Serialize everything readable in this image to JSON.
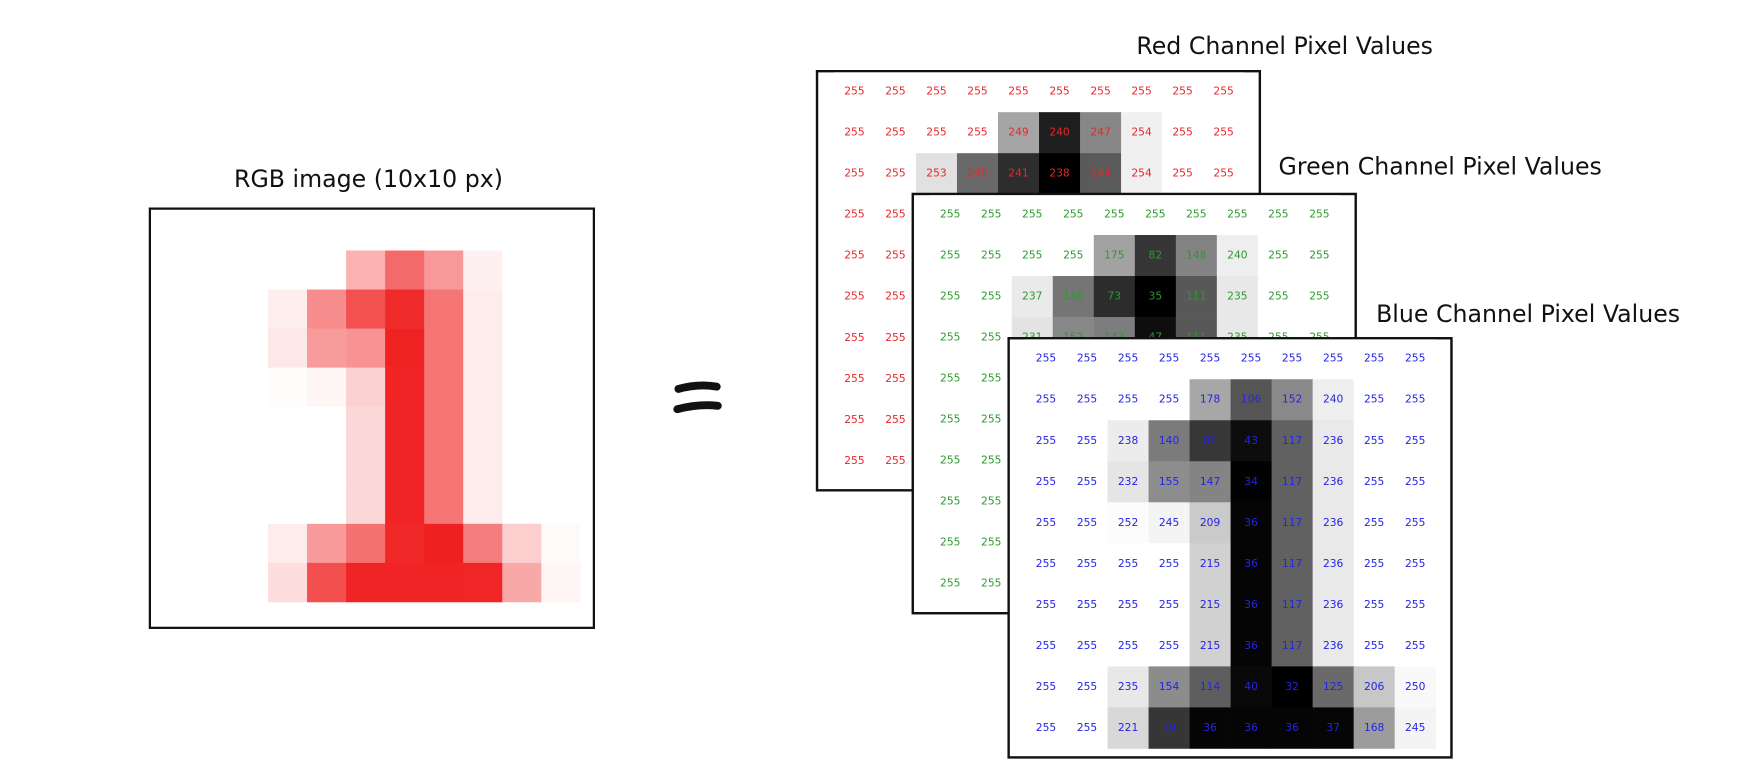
{
  "image": {
    "title": "RGB image (10x10 px)"
  },
  "channels": [
    {
      "title": "Red Channel Pixel Values",
      "color": "#e8262a",
      "values": [
        [
          255,
          255,
          255,
          255,
          255,
          255,
          255,
          255,
          255,
          255
        ],
        [
          255,
          255,
          255,
          255,
          249,
          240,
          247,
          254,
          255,
          255
        ],
        [
          255,
          255,
          253,
          245,
          241,
          238,
          244,
          254,
          255,
          255
        ],
        [
          255,
          255,
          null,
          null,
          null,
          null,
          null,
          null,
          null,
          null
        ],
        [
          255,
          255,
          null,
          null,
          null,
          null,
          null,
          null,
          null,
          null
        ],
        [
          255,
          255,
          null,
          null,
          null,
          null,
          null,
          null,
          null,
          null
        ],
        [
          255,
          255,
          null,
          null,
          null,
          null,
          null,
          null,
          null,
          null
        ],
        [
          255,
          255,
          null,
          null,
          null,
          null,
          null,
          null,
          null,
          null
        ],
        [
          255,
          255,
          null,
          null,
          null,
          null,
          null,
          null,
          null,
          null
        ],
        [
          255,
          255,
          null,
          null,
          null,
          null,
          null,
          null,
          null,
          null
        ]
      ]
    },
    {
      "title": "Green Channel Pixel Values",
      "color": "#2c9a2c",
      "values": [
        [
          255,
          255,
          255,
          255,
          255,
          255,
          255,
          255,
          255,
          255
        ],
        [
          255,
          255,
          255,
          255,
          175,
          82,
          148,
          240,
          255,
          255
        ],
        [
          255,
          255,
          237,
          136,
          73,
          35,
          111,
          235,
          255,
          255
        ],
        [
          255,
          255,
          231,
          152,
          143,
          47,
          111,
          235,
          255,
          255
        ],
        [
          255,
          255,
          null,
          null,
          null,
          null,
          null,
          null,
          null,
          null
        ],
        [
          255,
          255,
          null,
          null,
          null,
          null,
          null,
          null,
          null,
          null
        ],
        [
          255,
          255,
          null,
          null,
          null,
          null,
          null,
          null,
          null,
          null
        ],
        [
          255,
          255,
          null,
          null,
          null,
          null,
          null,
          null,
          null,
          null
        ],
        [
          255,
          255,
          null,
          null,
          null,
          null,
          null,
          null,
          null,
          null
        ],
        [
          255,
          255,
          null,
          null,
          null,
          null,
          null,
          null,
          null,
          null
        ]
      ]
    },
    {
      "title": "Blue Channel Pixel Values",
      "color": "#2424e6",
      "values": [
        [
          255,
          255,
          255,
          255,
          255,
          255,
          255,
          255,
          255,
          255
        ],
        [
          255,
          255,
          255,
          255,
          178,
          106,
          152,
          240,
          255,
          255
        ],
        [
          255,
          255,
          238,
          140,
          80,
          43,
          117,
          236,
          255,
          255
        ],
        [
          255,
          255,
          232,
          155,
          147,
          34,
          117,
          236,
          255,
          255
        ],
        [
          255,
          255,
          252,
          245,
          209,
          36,
          117,
          236,
          255,
          255
        ],
        [
          255,
          255,
          255,
          255,
          215,
          36,
          117,
          236,
          255,
          255
        ],
        [
          255,
          255,
          255,
          255,
          215,
          36,
          117,
          236,
          255,
          255
        ],
        [
          255,
          255,
          255,
          255,
          215,
          36,
          117,
          236,
          255,
          255
        ],
        [
          255,
          255,
          235,
          154,
          114,
          40,
          32,
          125,
          206,
          250
        ],
        [
          255,
          255,
          221,
          79,
          36,
          36,
          36,
          37,
          168,
          245
        ]
      ]
    }
  ]
}
